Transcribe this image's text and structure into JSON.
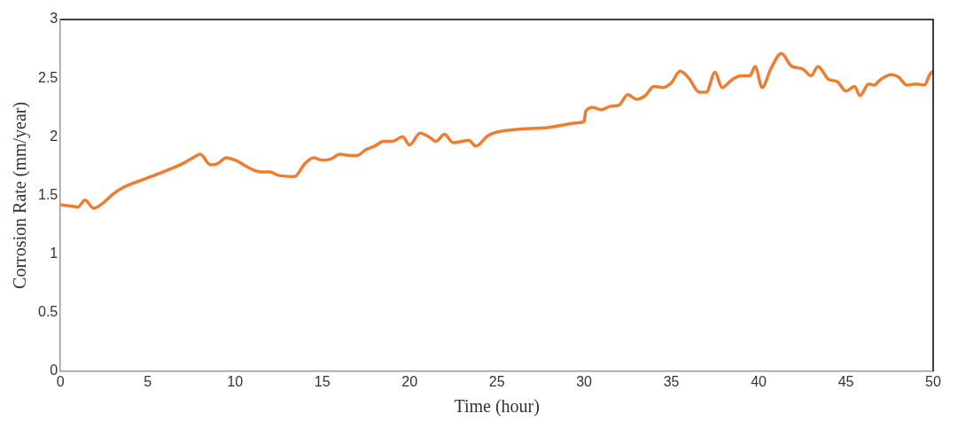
{
  "chart_data": {
    "type": "line",
    "xlabel": "Time (hour)",
    "ylabel": "Corrosion Rate (mm/year)",
    "xlim": [
      0,
      50
    ],
    "xticks": [
      0,
      5,
      10,
      15,
      20,
      25,
      30,
      35,
      40,
      45,
      50
    ],
    "ylim": [
      0,
      3
    ],
    "yticks": [
      0,
      0.5,
      1,
      1.5,
      2,
      2.5,
      3
    ],
    "grid": false,
    "legend": false,
    "marker": "none",
    "line_style": "solid",
    "series": [
      {
        "color": "#ed7d31",
        "x": [
          0,
          0.5,
          1,
          1.4,
          1.9,
          2.4,
          3,
          3.5,
          5,
          7,
          7.7,
          8,
          8.6,
          9,
          9.5,
          10,
          11,
          11.5,
          12,
          12.5,
          13.4,
          14,
          14.5,
          15,
          15.5,
          16,
          16.6,
          17,
          17.5,
          18,
          18.5,
          19,
          19.6,
          20,
          20.6,
          21.2,
          21.5,
          22,
          22.5,
          23,
          23.4,
          23.8,
          24.5,
          25,
          26,
          28,
          29.7,
          30,
          30.1,
          30.5,
          31,
          31.5,
          32,
          32.5,
          33,
          33.5,
          34,
          34.5,
          35,
          35.5,
          36,
          36.6,
          37,
          37.5,
          37.9,
          38.5,
          39,
          39.5,
          39.8,
          40.2,
          40.7,
          41.3,
          41.9,
          42.5,
          43,
          43.4,
          44,
          44.5,
          45,
          45.5,
          45.8,
          46.3,
          46.6,
          47,
          47.6,
          48,
          48.5,
          49,
          49.5,
          49.8,
          50
        ],
        "values": [
          1.42,
          1.41,
          1.4,
          1.46,
          1.39,
          1.43,
          1.51,
          1.56,
          1.65,
          1.77,
          1.83,
          1.85,
          1.76,
          1.77,
          1.82,
          1.8,
          1.72,
          1.7,
          1.7,
          1.67,
          1.66,
          1.77,
          1.82,
          1.8,
          1.81,
          1.85,
          1.84,
          1.84,
          1.89,
          1.92,
          1.96,
          1.96,
          2.0,
          1.93,
          2.03,
          1.99,
          1.96,
          2.02,
          1.95,
          1.96,
          1.97,
          1.92,
          2.01,
          2.04,
          2.06,
          2.08,
          2.12,
          2.13,
          2.22,
          2.25,
          2.23,
          2.26,
          2.27,
          2.36,
          2.32,
          2.35,
          2.43,
          2.42,
          2.46,
          2.56,
          2.5,
          2.38,
          2.38,
          2.55,
          2.42,
          2.49,
          2.52,
          2.52,
          2.6,
          2.42,
          2.58,
          2.71,
          2.6,
          2.58,
          2.52,
          2.6,
          2.49,
          2.47,
          2.39,
          2.43,
          2.35,
          2.45,
          2.44,
          2.49,
          2.53,
          2.51,
          2.44,
          2.45,
          2.44,
          2.53,
          2.56
        ]
      }
    ]
  }
}
